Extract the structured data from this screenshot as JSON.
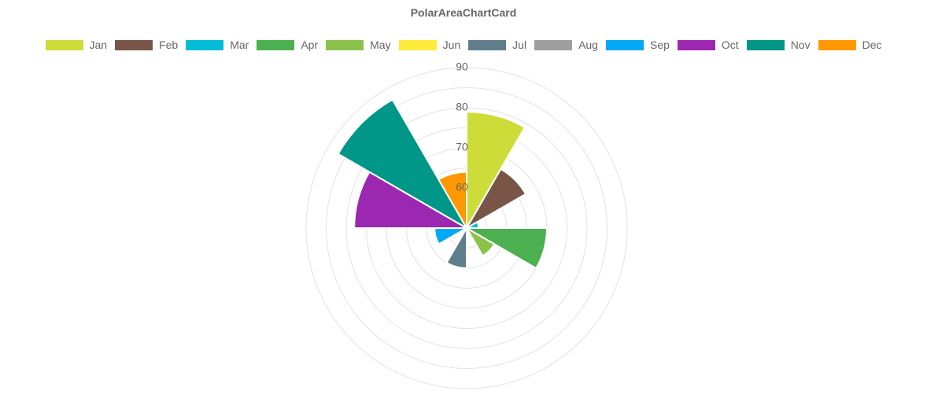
{
  "chart_data": {
    "type": "polar-area",
    "title": "PolarAreaChartCard",
    "legend_position": "top",
    "grid": true,
    "categories": [
      "Jan",
      "Feb",
      "Mar",
      "Apr",
      "May",
      "Jun",
      "Jul",
      "Aug",
      "Sep",
      "Oct",
      "Nov",
      "Dec"
    ],
    "values": [
      79,
      67,
      53,
      70,
      58,
      51,
      60,
      50,
      58,
      78,
      87,
      64
    ],
    "colors": [
      "#cddc39",
      "#795548",
      "#00bcd4",
      "#4caf50",
      "#8bc34a",
      "#ffeb3b",
      "#607d8b",
      "#9e9e9e",
      "#03a9f4",
      "#9c27b0",
      "#009688",
      "#ff9800"
    ],
    "r_range": [
      50,
      90
    ],
    "r_ticks": [
      60,
      70,
      80,
      90
    ],
    "tick_labels": [
      "60",
      "70",
      "80",
      "90"
    ]
  }
}
